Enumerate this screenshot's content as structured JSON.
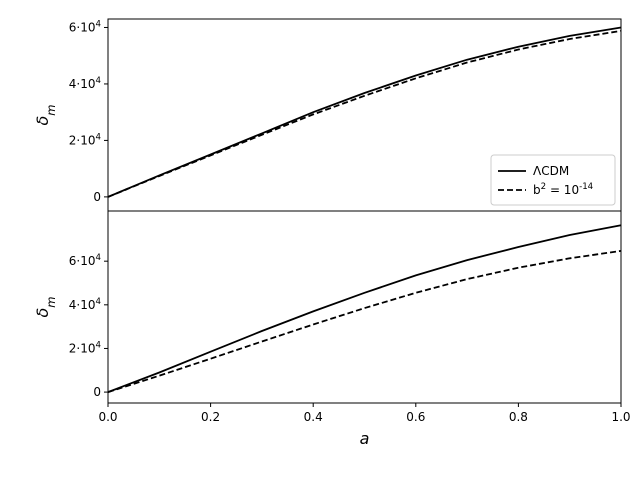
{
  "chart_data": [
    {
      "type": "line",
      "panel": "top",
      "ylabel": "δm",
      "xlim": [
        0.0,
        1.0
      ],
      "ylim": [
        -5000,
        63000
      ],
      "yticks": [
        {
          "value": 0,
          "label": "0"
        },
        {
          "value": 20000,
          "label": "2·10^4"
        },
        {
          "value": 40000,
          "label": "4·10^4"
        },
        {
          "value": 60000,
          "label": "6·10^4"
        }
      ],
      "legend_position": "lower-right",
      "series": [
        {
          "name": "ΛCDM",
          "style": "solid",
          "color": "#000000",
          "x": [
            0.0,
            0.1,
            0.2,
            0.3,
            0.4,
            0.5,
            0.6,
            0.7,
            0.8,
            0.9,
            1.0
          ],
          "y": [
            0,
            7600,
            15000,
            22500,
            30000,
            36800,
            43000,
            48600,
            53200,
            57000,
            60000
          ]
        },
        {
          "name": "b^2 = 10^-14",
          "style": "dashed",
          "color": "#000000",
          "x": [
            0.0,
            0.1,
            0.2,
            0.3,
            0.4,
            0.5,
            0.6,
            0.7,
            0.8,
            0.9,
            1.0
          ],
          "y": [
            0,
            7400,
            14700,
            22000,
            29200,
            35800,
            42000,
            47600,
            52200,
            55900,
            58800
          ]
        }
      ]
    },
    {
      "type": "line",
      "panel": "bottom",
      "xlabel": "a",
      "ylabel": "δm",
      "xlim": [
        0.0,
        1.0
      ],
      "ylim": [
        -5000,
        83000
      ],
      "xticks": [
        {
          "value": 0.0,
          "label": "0.0"
        },
        {
          "value": 0.2,
          "label": "0.2"
        },
        {
          "value": 0.4,
          "label": "0.4"
        },
        {
          "value": 0.6,
          "label": "0.6"
        },
        {
          "value": 0.8,
          "label": "0.8"
        },
        {
          "value": 1.0,
          "label": "1.0"
        }
      ],
      "yticks": [
        {
          "value": 0,
          "label": "0"
        },
        {
          "value": 20000,
          "label": "2·10^4"
        },
        {
          "value": 40000,
          "label": "4·10^4"
        },
        {
          "value": 60000,
          "label": "6·10^4"
        }
      ],
      "series": [
        {
          "name": "ΛCDM",
          "style": "solid",
          "color": "#000000",
          "x": [
            0.0,
            0.1,
            0.2,
            0.3,
            0.4,
            0.5,
            0.6,
            0.7,
            0.8,
            0.9,
            1.0
          ],
          "y": [
            0,
            9000,
            18500,
            28000,
            37000,
            45500,
            53500,
            60500,
            66500,
            72000,
            76500
          ]
        },
        {
          "name": "b^2 = 10^-14",
          "style": "dashed",
          "color": "#000000",
          "x": [
            0.0,
            0.1,
            0.2,
            0.3,
            0.4,
            0.5,
            0.6,
            0.7,
            0.8,
            0.9,
            1.0
          ],
          "y": [
            0,
            7500,
            15300,
            23200,
            31000,
            38500,
            45500,
            51800,
            57000,
            61300,
            64700
          ]
        }
      ]
    }
  ]
}
